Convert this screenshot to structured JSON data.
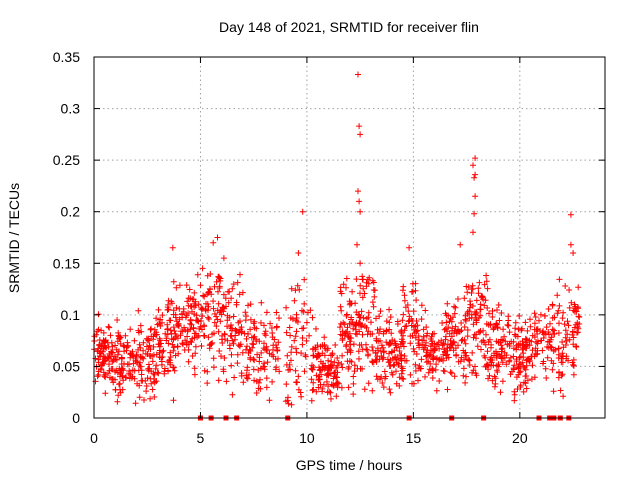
{
  "chart_data": {
    "type": "scatter",
    "title": "Day 148 of 2021, SRMTID for receiver flin",
    "xlabel": "GPS time / hours",
    "ylabel": "SRMTID / TECUs",
    "xlim": [
      0,
      24
    ],
    "ylim": [
      0,
      0.35
    ],
    "xticks": [
      0,
      5,
      10,
      15,
      20
    ],
    "xtick_labels": [
      "0",
      "5",
      "10",
      "15",
      "20"
    ],
    "yticks": [
      0,
      0.05,
      0.1,
      0.15,
      0.2,
      0.25,
      0.3,
      0.35
    ],
    "ytick_labels": [
      "0",
      "0.05",
      "0.1",
      "0.15",
      "0.2",
      "0.25",
      "0.3",
      "0.35"
    ],
    "grid": true,
    "marker": "+",
    "series_color": "#ff0000",
    "clusters": [
      {
        "x0": 0.0,
        "x1": 1.0,
        "mean": 0.065,
        "spread": 0.018,
        "n": 90
      },
      {
        "x0": 1.0,
        "x1": 2.0,
        "mean": 0.055,
        "spread": 0.02,
        "n": 80
      },
      {
        "x0": 2.0,
        "x1": 3.0,
        "mean": 0.058,
        "spread": 0.022,
        "n": 80
      },
      {
        "x0": 3.0,
        "x1": 3.8,
        "mean": 0.075,
        "spread": 0.025,
        "n": 70
      },
      {
        "x0": 3.8,
        "x1": 4.6,
        "mean": 0.095,
        "spread": 0.022,
        "n": 60
      },
      {
        "x0": 4.6,
        "x1": 5.3,
        "mean": 0.09,
        "spread": 0.025,
        "n": 50
      },
      {
        "x0": 5.3,
        "x1": 6.0,
        "mean": 0.1,
        "spread": 0.035,
        "n": 55
      },
      {
        "x0": 6.0,
        "x1": 7.0,
        "mean": 0.095,
        "spread": 0.03,
        "n": 70
      },
      {
        "x0": 7.0,
        "x1": 8.7,
        "mean": 0.065,
        "spread": 0.022,
        "n": 100
      },
      {
        "x0": 9.0,
        "x1": 10.2,
        "mean": 0.075,
        "spread": 0.035,
        "n": 60
      },
      {
        "x0": 10.2,
        "x1": 11.5,
        "mean": 0.05,
        "spread": 0.018,
        "n": 110
      },
      {
        "x0": 11.5,
        "x1": 12.3,
        "mean": 0.075,
        "spread": 0.03,
        "n": 70
      },
      {
        "x0": 12.3,
        "x1": 13.2,
        "mean": 0.09,
        "spread": 0.035,
        "n": 70
      },
      {
        "x0": 13.2,
        "x1": 14.5,
        "mean": 0.065,
        "spread": 0.022,
        "n": 110
      },
      {
        "x0": 14.5,
        "x1": 15.2,
        "mean": 0.09,
        "spread": 0.03,
        "n": 50
      },
      {
        "x0": 15.2,
        "x1": 16.5,
        "mean": 0.065,
        "spread": 0.018,
        "n": 90
      },
      {
        "x0": 16.5,
        "x1": 17.5,
        "mean": 0.075,
        "spread": 0.022,
        "n": 80
      },
      {
        "x0": 17.5,
        "x1": 18.5,
        "mean": 0.1,
        "spread": 0.03,
        "n": 80
      },
      {
        "x0": 18.5,
        "x1": 19.5,
        "mean": 0.07,
        "spread": 0.022,
        "n": 80
      },
      {
        "x0": 19.5,
        "x1": 20.5,
        "mean": 0.06,
        "spread": 0.022,
        "n": 90
      },
      {
        "x0": 20.5,
        "x1": 21.5,
        "mean": 0.07,
        "spread": 0.02,
        "n": 60
      },
      {
        "x0": 21.5,
        "x1": 22.2,
        "mean": 0.075,
        "spread": 0.025,
        "n": 50
      },
      {
        "x0": 22.2,
        "x1": 22.8,
        "mean": 0.09,
        "spread": 0.03,
        "n": 40
      }
    ],
    "outliers": [
      {
        "x": 3.7,
        "y": 0.165
      },
      {
        "x": 5.1,
        "y": 0.145
      },
      {
        "x": 5.6,
        "y": 0.17
      },
      {
        "x": 5.8,
        "y": 0.175
      },
      {
        "x": 6.1,
        "y": 0.155
      },
      {
        "x": 9.8,
        "y": 0.2
      },
      {
        "x": 9.6,
        "y": 0.16
      },
      {
        "x": 12.4,
        "y": 0.333
      },
      {
        "x": 12.45,
        "y": 0.283
      },
      {
        "x": 12.5,
        "y": 0.275
      },
      {
        "x": 12.4,
        "y": 0.22
      },
      {
        "x": 12.45,
        "y": 0.21
      },
      {
        "x": 12.5,
        "y": 0.2
      },
      {
        "x": 12.35,
        "y": 0.168
      },
      {
        "x": 12.5,
        "y": 0.15
      },
      {
        "x": 14.8,
        "y": 0.165
      },
      {
        "x": 17.2,
        "y": 0.168
      },
      {
        "x": 17.9,
        "y": 0.252
      },
      {
        "x": 17.8,
        "y": 0.245
      },
      {
        "x": 17.9,
        "y": 0.236
      },
      {
        "x": 17.85,
        "y": 0.233
      },
      {
        "x": 17.9,
        "y": 0.215
      },
      {
        "x": 17.85,
        "y": 0.198
      },
      {
        "x": 17.8,
        "y": 0.18
      },
      {
        "x": 22.4,
        "y": 0.197
      },
      {
        "x": 22.4,
        "y": 0.168
      },
      {
        "x": 22.5,
        "y": 0.16
      }
    ],
    "zero_points": [
      5.0,
      5.5,
      6.2,
      6.7,
      9.1,
      14.8,
      16.8,
      18.3,
      20.9,
      21.4,
      21.6,
      21.9,
      22.3
    ]
  }
}
